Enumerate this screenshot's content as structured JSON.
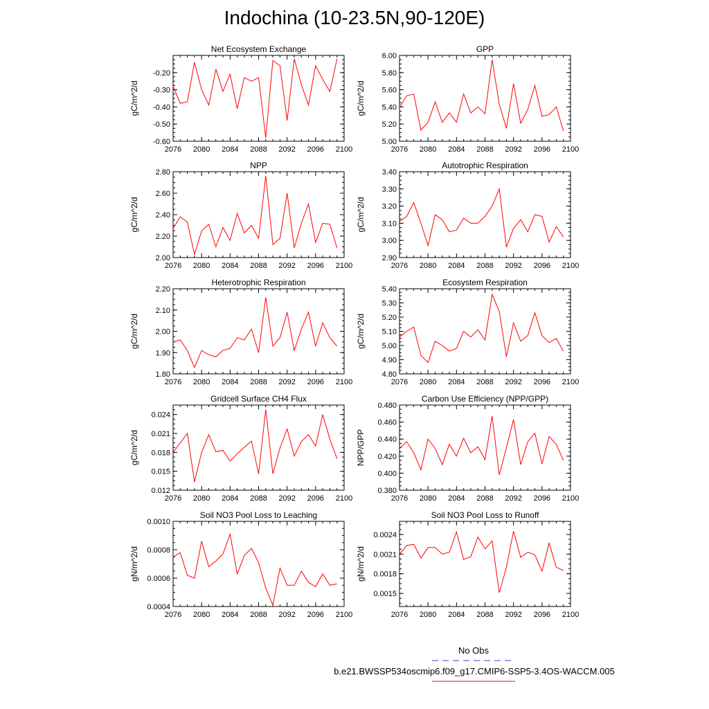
{
  "figure_title": "Indochina (10-23.5N,90-120E)",
  "legend": {
    "obs_label": "No Obs",
    "case_label": "b.e21.BWSSP534oscmip6.f09_g17.CMIP6-SSP5-3.4OS-WACCM.005",
    "obs_color": "#4040c0",
    "case_color": "#ff0000"
  },
  "chart_data": [
    {
      "type": "line",
      "title": "Net Ecosystem Exchange",
      "xlabel": "",
      "ylabel": "gC/m^2/d",
      "x_ticks": [
        "2076",
        "2080",
        "2084",
        "2088",
        "2092",
        "2096",
        "2100"
      ],
      "xlim": [
        2076,
        2100
      ],
      "ylim": [
        -0.6,
        -0.1
      ],
      "y_ticks": [
        "-0.60",
        "-0.50",
        "-0.40",
        "-0.30",
        "-0.20"
      ],
      "x": [
        2076,
        2077,
        2078,
        2079,
        2080,
        2081,
        2082,
        2083,
        2084,
        2085,
        2086,
        2087,
        2088,
        2089,
        2090,
        2091,
        2092,
        2093,
        2094,
        2095,
        2096,
        2097,
        2098,
        2099
      ],
      "series": [
        {
          "name": "case",
          "color": "#ff0000",
          "values": [
            -0.28,
            -0.38,
            -0.37,
            -0.14,
            -0.3,
            -0.39,
            -0.18,
            -0.31,
            -0.21,
            -0.41,
            -0.23,
            -0.25,
            -0.23,
            -0.58,
            -0.13,
            -0.16,
            -0.48,
            -0.12,
            -0.27,
            -0.39,
            -0.16,
            -0.24,
            -0.31,
            -0.12
          ]
        }
      ]
    },
    {
      "type": "line",
      "title": "GPP",
      "xlabel": "",
      "ylabel": "gC/m^2/d",
      "x_ticks": [
        "2076",
        "2080",
        "2084",
        "2088",
        "2092",
        "2096",
        "2100"
      ],
      "xlim": [
        2076,
        2100
      ],
      "ylim": [
        5.0,
        6.0
      ],
      "y_ticks": [
        "5.00",
        "5.20",
        "5.40",
        "5.60",
        "5.80",
        "6.00"
      ],
      "x": [
        2076,
        2077,
        2078,
        2079,
        2080,
        2081,
        2082,
        2083,
        2084,
        2085,
        2086,
        2087,
        2088,
        2089,
        2090,
        2091,
        2092,
        2093,
        2094,
        2095,
        2096,
        2097,
        2098,
        2099
      ],
      "series": [
        {
          "name": "case",
          "color": "#ff0000",
          "values": [
            5.39,
            5.53,
            5.55,
            5.13,
            5.22,
            5.46,
            5.22,
            5.33,
            5.22,
            5.55,
            5.33,
            5.4,
            5.32,
            5.95,
            5.43,
            5.15,
            5.67,
            5.21,
            5.37,
            5.65,
            5.29,
            5.31,
            5.4,
            5.12
          ]
        }
      ]
    },
    {
      "type": "line",
      "title": "NPP",
      "xlabel": "",
      "ylabel": "gC/m^2/d",
      "x_ticks": [
        "2076",
        "2080",
        "2084",
        "2088",
        "2092",
        "2096",
        "2100"
      ],
      "xlim": [
        2076,
        2100
      ],
      "ylim": [
        2.0,
        2.8
      ],
      "y_ticks": [
        "2.00",
        "2.20",
        "2.40",
        "2.60",
        "2.80"
      ],
      "x": [
        2076,
        2077,
        2078,
        2079,
        2080,
        2081,
        2082,
        2083,
        2084,
        2085,
        2086,
        2087,
        2088,
        2089,
        2090,
        2091,
        2092,
        2093,
        2094,
        2095,
        2096,
        2097,
        2098,
        2099
      ],
      "series": [
        {
          "name": "case",
          "color": "#ff0000",
          "values": [
            2.27,
            2.38,
            2.33,
            2.03,
            2.25,
            2.31,
            2.1,
            2.28,
            2.16,
            2.41,
            2.23,
            2.3,
            2.18,
            2.76,
            2.12,
            2.18,
            2.6,
            2.09,
            2.32,
            2.5,
            2.14,
            2.32,
            2.31,
            2.09
          ]
        }
      ]
    },
    {
      "type": "line",
      "title": "Autotrophic Respiration",
      "xlabel": "",
      "ylabel": "gC/m^2/d",
      "x_ticks": [
        "2076",
        "2080",
        "2084",
        "2088",
        "2092",
        "2096",
        "2100"
      ],
      "xlim": [
        2076,
        2100
      ],
      "ylim": [
        2.9,
        3.4
      ],
      "y_ticks": [
        "2.90",
        "3.00",
        "3.10",
        "3.20",
        "3.30",
        "3.40"
      ],
      "x": [
        2076,
        2077,
        2078,
        2079,
        2080,
        2081,
        2082,
        2083,
        2084,
        2085,
        2086,
        2087,
        2088,
        2089,
        2090,
        2091,
        2092,
        2093,
        2094,
        2095,
        2096,
        2097,
        2098,
        2099
      ],
      "series": [
        {
          "name": "case",
          "color": "#ff0000",
          "values": [
            3.11,
            3.14,
            3.22,
            3.1,
            2.97,
            3.15,
            3.12,
            3.05,
            3.06,
            3.13,
            3.1,
            3.1,
            3.14,
            3.2,
            3.3,
            2.96,
            3.07,
            3.12,
            3.05,
            3.15,
            3.14,
            2.99,
            3.08,
            3.02
          ]
        }
      ]
    },
    {
      "type": "line",
      "title": "Heterotrophic Respiration",
      "xlabel": "",
      "ylabel": "gC/m^2/d",
      "x_ticks": [
        "2076",
        "2080",
        "2084",
        "2088",
        "2092",
        "2096",
        "2100"
      ],
      "xlim": [
        2076,
        2100
      ],
      "ylim": [
        1.8,
        2.2
      ],
      "y_ticks": [
        "1.80",
        "1.90",
        "2.00",
        "2.10",
        "2.20"
      ],
      "x": [
        2076,
        2077,
        2078,
        2079,
        2080,
        2081,
        2082,
        2083,
        2084,
        2085,
        2086,
        2087,
        2088,
        2089,
        2090,
        2091,
        2092,
        2093,
        2094,
        2095,
        2096,
        2097,
        2098,
        2099
      ],
      "series": [
        {
          "name": "case",
          "color": "#ff0000",
          "values": [
            1.95,
            1.96,
            1.91,
            1.83,
            1.91,
            1.89,
            1.88,
            1.91,
            1.92,
            1.97,
            1.96,
            2.01,
            1.9,
            2.16,
            1.93,
            1.97,
            2.09,
            1.91,
            2.01,
            2.09,
            1.93,
            2.04,
            1.97,
            1.93
          ]
        }
      ]
    },
    {
      "type": "line",
      "title": "Ecosystem Respiration",
      "xlabel": "",
      "ylabel": "gC/m^2/d",
      "x_ticks": [
        "2076",
        "2080",
        "2084",
        "2088",
        "2092",
        "2096",
        "2100"
      ],
      "xlim": [
        2076,
        2100
      ],
      "ylim": [
        4.8,
        5.4
      ],
      "y_ticks": [
        "4.80",
        "4.90",
        "5.00",
        "5.10",
        "5.20",
        "5.30",
        "5.40"
      ],
      "x": [
        2076,
        2077,
        2078,
        2079,
        2080,
        2081,
        2082,
        2083,
        2084,
        2085,
        2086,
        2087,
        2088,
        2089,
        2090,
        2091,
        2092,
        2093,
        2094,
        2095,
        2096,
        2097,
        2098,
        2099
      ],
      "series": [
        {
          "name": "case",
          "color": "#ff0000",
          "values": [
            5.06,
            5.1,
            5.13,
            4.93,
            4.88,
            5.03,
            5.0,
            4.96,
            4.98,
            5.1,
            5.06,
            5.11,
            5.04,
            5.36,
            5.24,
            4.92,
            5.16,
            5.03,
            5.07,
            5.23,
            5.07,
            5.02,
            5.05,
            4.96
          ]
        }
      ]
    },
    {
      "type": "line",
      "title": "Gridcell Surface CH4 Flux",
      "xlabel": "",
      "ylabel": "gC/m^2/d",
      "x_ticks": [
        "2076",
        "2080",
        "2084",
        "2088",
        "2092",
        "2096",
        "2100"
      ],
      "xlim": [
        2076,
        2100
      ],
      "ylim": [
        0.012,
        0.0255
      ],
      "y_ticks": [
        "0.012",
        "0.015",
        "0.018",
        "0.021",
        "0.024"
      ],
      "x": [
        2076,
        2077,
        2078,
        2079,
        2080,
        2081,
        2082,
        2083,
        2084,
        2085,
        2086,
        2087,
        2088,
        2089,
        2090,
        2091,
        2092,
        2093,
        2094,
        2095,
        2096,
        2097,
        2098,
        2099
      ],
      "series": [
        {
          "name": "case",
          "color": "#ff0000",
          "values": [
            0.018,
            0.0195,
            0.021,
            0.0133,
            0.018,
            0.0208,
            0.0181,
            0.0183,
            0.0166,
            0.0178,
            0.0188,
            0.0198,
            0.0146,
            0.0248,
            0.0146,
            0.0187,
            0.0217,
            0.0174,
            0.0197,
            0.0208,
            0.019,
            0.024,
            0.0201,
            0.017
          ]
        }
      ]
    },
    {
      "type": "line",
      "title": "Carbon Use Efficiency (NPP/GPP)",
      "xlabel": "",
      "ylabel": "NPP/GPP",
      "x_ticks": [
        "2076",
        "2080",
        "2084",
        "2088",
        "2092",
        "2096",
        "2100"
      ],
      "xlim": [
        2076,
        2100
      ],
      "ylim": [
        0.38,
        0.48
      ],
      "y_ticks": [
        "0.380",
        "0.400",
        "0.420",
        "0.440",
        "0.460",
        "0.480"
      ],
      "x": [
        2076,
        2077,
        2078,
        2079,
        2080,
        2081,
        2082,
        2083,
        2084,
        2085,
        2086,
        2087,
        2088,
        2089,
        2090,
        2091,
        2092,
        2093,
        2094,
        2095,
        2096,
        2097,
        2098,
        2099
      ],
      "series": [
        {
          "name": "case",
          "color": "#ff0000",
          "values": [
            0.429,
            0.437,
            0.424,
            0.404,
            0.44,
            0.429,
            0.41,
            0.434,
            0.42,
            0.441,
            0.424,
            0.431,
            0.416,
            0.467,
            0.398,
            0.43,
            0.463,
            0.41,
            0.437,
            0.447,
            0.411,
            0.443,
            0.434,
            0.415
          ]
        }
      ]
    },
    {
      "type": "line",
      "title": "Soil NO3 Pool Loss to Leaching",
      "xlabel": "",
      "ylabel": "gN/m^2/d",
      "x_ticks": [
        "2076",
        "2080",
        "2084",
        "2088",
        "2092",
        "2096",
        "2100"
      ],
      "xlim": [
        2076,
        2100
      ],
      "ylim": [
        0.0004,
        0.001
      ],
      "y_ticks": [
        "0.0004",
        "0.0006",
        "0.0008",
        "0.0010"
      ],
      "x": [
        2076,
        2077,
        2078,
        2079,
        2080,
        2081,
        2082,
        2083,
        2084,
        2085,
        2086,
        2087,
        2088,
        2089,
        2090,
        2091,
        2092,
        2093,
        2094,
        2095,
        2096,
        2097,
        2098,
        2099
      ],
      "series": [
        {
          "name": "case",
          "color": "#ff0000",
          "values": [
            0.00075,
            0.00078,
            0.00062,
            0.0006,
            0.00086,
            0.00068,
            0.00072,
            0.00077,
            0.00091,
            0.00063,
            0.00076,
            0.00081,
            0.00071,
            0.00053,
            0.00041,
            0.00067,
            0.00055,
            0.00055,
            0.00065,
            0.00057,
            0.00054,
            0.00063,
            0.00055,
            0.00056
          ]
        }
      ]
    },
    {
      "type": "line",
      "title": "Soil NO3 Pool Loss to Runoff",
      "xlabel": "",
      "ylabel": "gN/m^2/d",
      "x_ticks": [
        "2076",
        "2080",
        "2084",
        "2088",
        "2092",
        "2096",
        "2100"
      ],
      "xlim": [
        2076,
        2100
      ],
      "ylim": [
        0.0013,
        0.0026
      ],
      "y_ticks": [
        "0.0015",
        "0.0018",
        "0.0021",
        "0.0024"
      ],
      "x": [
        2076,
        2077,
        2078,
        2079,
        2080,
        2081,
        2082,
        2083,
        2084,
        2085,
        2086,
        2087,
        2088,
        2089,
        2090,
        2091,
        2092,
        2093,
        2094,
        2095,
        2096,
        2097,
        2098,
        2099
      ],
      "series": [
        {
          "name": "case",
          "color": "#ff0000",
          "values": [
            0.0021,
            0.00223,
            0.00225,
            0.00204,
            0.0022,
            0.0022,
            0.0021,
            0.00213,
            0.00244,
            0.00202,
            0.00206,
            0.00236,
            0.00218,
            0.0023,
            0.00151,
            0.0019,
            0.00245,
            0.00205,
            0.00213,
            0.00209,
            0.00184,
            0.00227,
            0.0019,
            0.00185
          ]
        }
      ]
    }
  ]
}
